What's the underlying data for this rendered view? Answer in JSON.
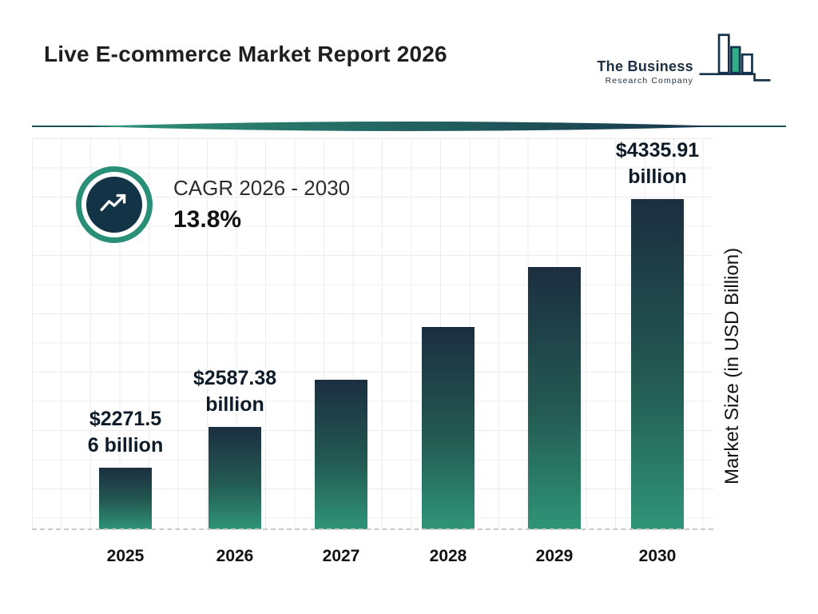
{
  "page": {
    "title": "Live E-commerce Market Report 2026"
  },
  "logo": {
    "name_line1": "The Business",
    "name_line2": "Research Company"
  },
  "cagr": {
    "label": "CAGR 2026 - 2030",
    "value": "13.8%"
  },
  "chart_data": {
    "type": "bar",
    "title": "Live E-commerce Market Report 2026",
    "categories": [
      "2025",
      "2026",
      "2027",
      "2028",
      "2029",
      "2030"
    ],
    "values": [
      2271.56,
      2587.38,
      2944.44,
      3350.77,
      3813.17,
      4335.91
    ],
    "value_labels": [
      [
        "$2271.5",
        "6 billion"
      ],
      [
        "$2587.38",
        "billion"
      ],
      null,
      null,
      null,
      [
        "$4335.91",
        "billion"
      ]
    ],
    "xlabel": "",
    "ylabel": "Market Size (in USD Billion)",
    "ylim": [
      1800,
      4800
    ],
    "grid": true,
    "legend": "none",
    "bar_gradient_top": "#1b2e40",
    "bar_gradient_bottom": "#2f9478"
  },
  "colors": {
    "accent_teal": "#2f9478",
    "dark_navy": "#14324a",
    "divider_teal": "#1b4f52",
    "grid_line": "#ececec"
  }
}
